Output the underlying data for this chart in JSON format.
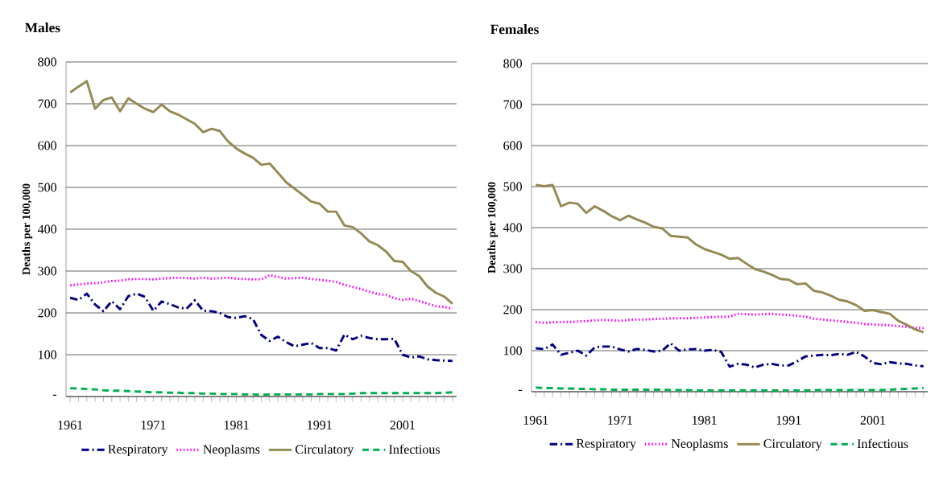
{
  "chart_data": [
    {
      "type": "line",
      "title": "Males",
      "ylabel": "Deaths per 100,000",
      "categories": [
        "1961",
        null,
        null,
        null,
        null,
        null,
        null,
        null,
        null,
        null,
        "1971",
        null,
        null,
        null,
        null,
        null,
        null,
        null,
        null,
        null,
        "1981",
        null,
        null,
        null,
        null,
        null,
        null,
        null,
        null,
        null,
        "1991",
        null,
        null,
        null,
        null,
        null,
        null,
        null,
        null,
        null,
        "2001",
        null,
        null,
        null,
        null,
        null,
        null
      ],
      "series": [
        {
          "name": "Respiratory",
          "color": "#000080",
          "line_style": "dashdot",
          "values": [
            236,
            231,
            246,
            220,
            204,
            228,
            209,
            240,
            246,
            238,
            205,
            227,
            221,
            213,
            210,
            230,
            205,
            204,
            200,
            190,
            188,
            192,
            185,
            147,
            133,
            143,
            130,
            120,
            124,
            128,
            116,
            116,
            110,
            148,
            137,
            145,
            140,
            137,
            137,
            138,
            100,
            93,
            96,
            89,
            87,
            86,
            85
          ]
        },
        {
          "name": "Neoplasms",
          "color": "#ff00ff",
          "line_style": "dotted",
          "values": [
            266,
            268,
            270,
            271,
            273,
            276,
            277,
            280,
            281,
            281,
            280,
            282,
            283,
            284,
            283,
            282,
            284,
            282,
            283,
            284,
            282,
            281,
            280,
            280,
            290,
            286,
            282,
            283,
            284,
            281,
            279,
            277,
            274,
            267,
            262,
            257,
            251,
            245,
            243,
            235,
            231,
            234,
            228,
            222,
            216,
            214,
            210
          ]
        },
        {
          "name": "Circulatory",
          "color": "#948a54",
          "line_style": "solid",
          "values": [
            727,
            741,
            754,
            688,
            709,
            715,
            682,
            713,
            700,
            688,
            680,
            698,
            682,
            674,
            663,
            652,
            632,
            640,
            635,
            610,
            593,
            581,
            571,
            554,
            557,
            535,
            512,
            497,
            482,
            466,
            461,
            442,
            442,
            409,
            405,
            390,
            371,
            362,
            347,
            324,
            322,
            300,
            288,
            263,
            248,
            239,
            222
          ]
        },
        {
          "name": "Infectious",
          "color": "#00b050",
          "line_style": "dashed",
          "values": [
            20,
            19,
            18,
            17,
            15,
            14,
            14,
            13,
            12,
            11,
            10,
            10,
            9,
            9,
            8,
            8,
            7,
            7,
            6,
            6,
            6,
            5,
            5,
            4,
            5,
            5,
            5,
            5,
            5,
            5,
            6,
            6,
            6,
            6,
            7,
            8,
            8,
            8,
            8,
            8,
            8,
            8,
            8,
            8,
            8,
            9,
            10
          ]
        }
      ],
      "ylim": [
        0,
        800
      ],
      "yticks": [
        {
          "value": 0,
          "label": "-"
        },
        100,
        200,
        300,
        400,
        500,
        600,
        700,
        800
      ],
      "grid": "y",
      "legend": "bottom",
      "marker": "none"
    },
    {
      "type": "line",
      "title": "Females",
      "ylabel": "Deaths per 100,000",
      "categories": [
        "1961",
        null,
        null,
        null,
        null,
        null,
        null,
        null,
        null,
        null,
        "1971",
        null,
        null,
        null,
        null,
        null,
        null,
        null,
        null,
        null,
        "1981",
        null,
        null,
        null,
        null,
        null,
        null,
        null,
        null,
        null,
        "1991",
        null,
        null,
        null,
        null,
        null,
        null,
        null,
        null,
        null,
        "2001",
        null,
        null,
        null,
        null,
        null,
        null
      ],
      "series": [
        {
          "name": "Respiratory",
          "color": "#000080",
          "line_style": "dashdot",
          "values": [
            106,
            104,
            115,
            90,
            95,
            100,
            88,
            108,
            110,
            110,
            103,
            98,
            104,
            102,
            98,
            100,
            118,
            100,
            103,
            104,
            100,
            102,
            97,
            61,
            68,
            66,
            59,
            66,
            68,
            64,
            64,
            74,
            86,
            88,
            90,
            89,
            92,
            90,
            97,
            86,
            70,
            67,
            72,
            69,
            68,
            64,
            62
          ]
        },
        {
          "name": "Neoplasms",
          "color": "#ff00ff",
          "line_style": "dotted",
          "values": [
            170,
            168,
            169,
            170,
            170,
            171,
            172,
            174,
            175,
            174,
            173,
            175,
            176,
            176,
            177,
            178,
            179,
            179,
            179,
            180,
            181,
            182,
            183,
            183,
            190,
            189,
            188,
            189,
            190,
            188,
            187,
            185,
            183,
            178,
            176,
            174,
            172,
            170,
            168,
            165,
            164,
            163,
            162,
            160,
            158,
            156,
            155
          ]
        },
        {
          "name": "Circulatory",
          "color": "#948a54",
          "line_style": "solid",
          "values": [
            504,
            501,
            504,
            452,
            461,
            458,
            436,
            452,
            441,
            428,
            418,
            429,
            420,
            412,
            402,
            398,
            380,
            378,
            376,
            359,
            348,
            341,
            334,
            324,
            326,
            312,
            299,
            293,
            285,
            275,
            273,
            262,
            264,
            246,
            242,
            234,
            224,
            220,
            211,
            197,
            199,
            194,
            190,
            173,
            163,
            152,
            145
          ]
        },
        {
          "name": "Infectious",
          "color": "#00b050",
          "line_style": "dashed",
          "values": [
            10,
            9,
            9,
            8,
            8,
            7,
            7,
            6,
            6,
            5,
            5,
            5,
            5,
            5,
            5,
            5,
            4,
            4,
            4,
            3,
            3,
            3,
            3,
            3,
            3,
            3,
            3,
            3,
            3,
            3,
            3,
            3,
            3,
            4,
            4,
            4,
            4,
            4,
            4,
            4,
            4,
            4,
            5,
            6,
            7,
            8,
            9
          ]
        }
      ],
      "ylim": [
        0,
        800
      ],
      "yticks": [
        {
          "value": 0,
          "label": "-"
        },
        100,
        200,
        300,
        400,
        500,
        600,
        700,
        800
      ],
      "grid": "y",
      "legend": "bottom",
      "marker": "none"
    }
  ]
}
